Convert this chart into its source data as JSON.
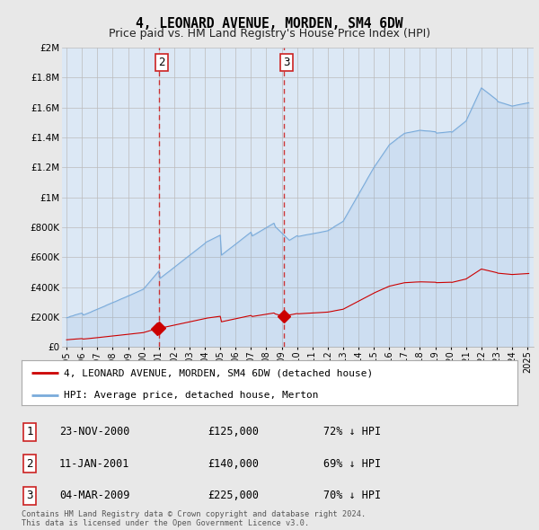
{
  "title": "4, LEONARD AVENUE, MORDEN, SM4 6DW",
  "subtitle": "Price paid vs. HM Land Registry's House Price Index (HPI)",
  "red_label": "4, LEONARD AVENUE, MORDEN, SM4 6DW (detached house)",
  "blue_label": "HPI: Average price, detached house, Merton",
  "footer1": "Contains HM Land Registry data © Crown copyright and database right 2024.",
  "footer2": "This data is licensed under the Open Government Licence v3.0.",
  "transactions": [
    {
      "num": 1,
      "date": "23-NOV-2000",
      "price": "£125,000",
      "pct": "72% ↓ HPI",
      "year": 2000.896,
      "price_val": 125000,
      "show_vline": false
    },
    {
      "num": 2,
      "date": "11-JAN-2001",
      "price": "£140,000",
      "pct": "69% ↓ HPI",
      "year": 2001.029,
      "price_val": 140000,
      "show_vline": true
    },
    {
      "num": 3,
      "date": "04-MAR-2009",
      "price": "£225,000",
      "pct": "70% ↓ HPI",
      "year": 2009.171,
      "price_val": 225000,
      "show_vline": true
    }
  ],
  "ylim": [
    0,
    2000000
  ],
  "xlim": [
    1994.7,
    2025.4
  ],
  "yticks": [
    0,
    200000,
    400000,
    600000,
    800000,
    1000000,
    1200000,
    1400000,
    1600000,
    1800000,
    2000000
  ],
  "ytick_labels": [
    "£0",
    "£200K",
    "£400K",
    "£600K",
    "£800K",
    "£1M",
    "£1.2M",
    "£1.4M",
    "£1.6M",
    "£1.8M",
    "£2M"
  ],
  "background_color": "#e8e8e8",
  "plot_bg": "#dce8f5",
  "red_color": "#cc0000",
  "blue_color": "#7aabdb",
  "vline_color": "#cc2222",
  "grid_color": "#bbbbbb"
}
